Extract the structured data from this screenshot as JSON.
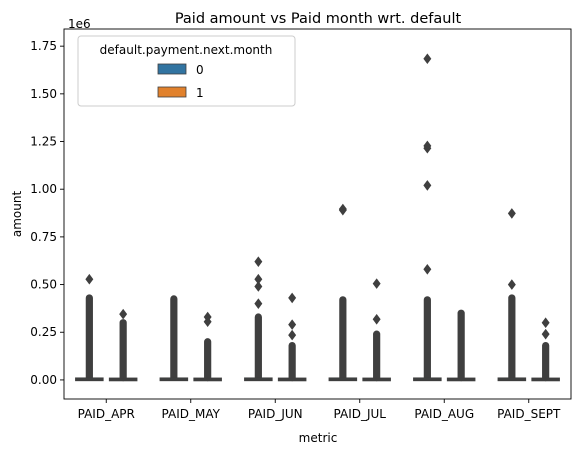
{
  "chart_data": {
    "type": "box",
    "title": "Paid amount vs Paid month wrt. default",
    "xlabel": "metric",
    "ylabel": "amount",
    "y_offset_label": "1e6",
    "ylim": [
      -100000,
      1840000
    ],
    "yticks": [
      0,
      250000,
      500000,
      750000,
      1000000,
      1250000,
      1500000,
      1750000
    ],
    "ytick_labels": [
      "0.00",
      "0.25",
      "0.50",
      "0.75",
      "1.00",
      "1.25",
      "1.50",
      "1.75"
    ],
    "categories": [
      "PAID_APR",
      "PAID_MAY",
      "PAID_JUN",
      "PAID_JUL",
      "PAID_AUG",
      "PAID_SEPT"
    ],
    "legend": {
      "title": "default.payment.next.month",
      "placement": "upper-left",
      "entries": [
        "0",
        "1"
      ]
    },
    "series": [
      {
        "name": "0",
        "color": "#3274a1",
        "boxes": [
          {
            "q1": 500,
            "median": 2000,
            "q3": 6000,
            "whisker_low": 0,
            "whisker_high": 14000,
            "outlier_max": 430000,
            "extreme_outliers": [
              528000
            ]
          },
          {
            "q1": 500,
            "median": 2000,
            "q3": 6000,
            "whisker_low": 0,
            "whisker_high": 14000,
            "outlier_max": 425000,
            "extreme_outliers": []
          },
          {
            "q1": 500,
            "median": 2000,
            "q3": 6000,
            "whisker_low": 0,
            "whisker_high": 14000,
            "outlier_max": 330000,
            "extreme_outliers": [
              400000,
              490000,
              528000,
              620000
            ]
          },
          {
            "q1": 500,
            "median": 2000,
            "q3": 6000,
            "whisker_low": 0,
            "whisker_high": 14000,
            "outlier_max": 420000,
            "extreme_outliers": [
              890000,
              896000
            ]
          },
          {
            "q1": 500,
            "median": 2000,
            "q3": 6000,
            "whisker_low": 0,
            "whisker_high": 14000,
            "outlier_max": 420000,
            "extreme_outliers": [
              580000,
              1020000,
              1215000,
              1227000,
              1684000
            ]
          },
          {
            "q1": 500,
            "median": 2000,
            "q3": 6000,
            "whisker_low": 0,
            "whisker_high": 14000,
            "outlier_max": 430000,
            "extreme_outliers": [
              500000,
              873000
            ]
          }
        ]
      },
      {
        "name": "1",
        "color": "#e1812c",
        "boxes": [
          {
            "q1": 200,
            "median": 1500,
            "q3": 5000,
            "whisker_low": 0,
            "whisker_high": 12000,
            "outlier_max": 300000,
            "extreme_outliers": [
              345000
            ]
          },
          {
            "q1": 200,
            "median": 1500,
            "q3": 5000,
            "whisker_low": 0,
            "whisker_high": 12000,
            "outlier_max": 200000,
            "extreme_outliers": [
              305000,
              330000
            ]
          },
          {
            "q1": 200,
            "median": 1500,
            "q3": 5000,
            "whisker_low": 0,
            "whisker_high": 12000,
            "outlier_max": 180000,
            "extreme_outliers": [
              235000,
              290000,
              430000
            ]
          },
          {
            "q1": 200,
            "median": 1500,
            "q3": 5000,
            "whisker_low": 0,
            "whisker_high": 12000,
            "outlier_max": 240000,
            "extreme_outliers": [
              318000,
              505000
            ]
          },
          {
            "q1": 200,
            "median": 1500,
            "q3": 5000,
            "whisker_low": 0,
            "whisker_high": 12000,
            "outlier_max": 350000,
            "extreme_outliers": []
          },
          {
            "q1": 200,
            "median": 1500,
            "q3": 5000,
            "whisker_low": 0,
            "whisker_high": 12000,
            "outlier_max": 180000,
            "extreme_outliers": [
              240000,
              300000
            ]
          }
        ]
      }
    ],
    "box_edge_color": "#3f3f3f"
  }
}
